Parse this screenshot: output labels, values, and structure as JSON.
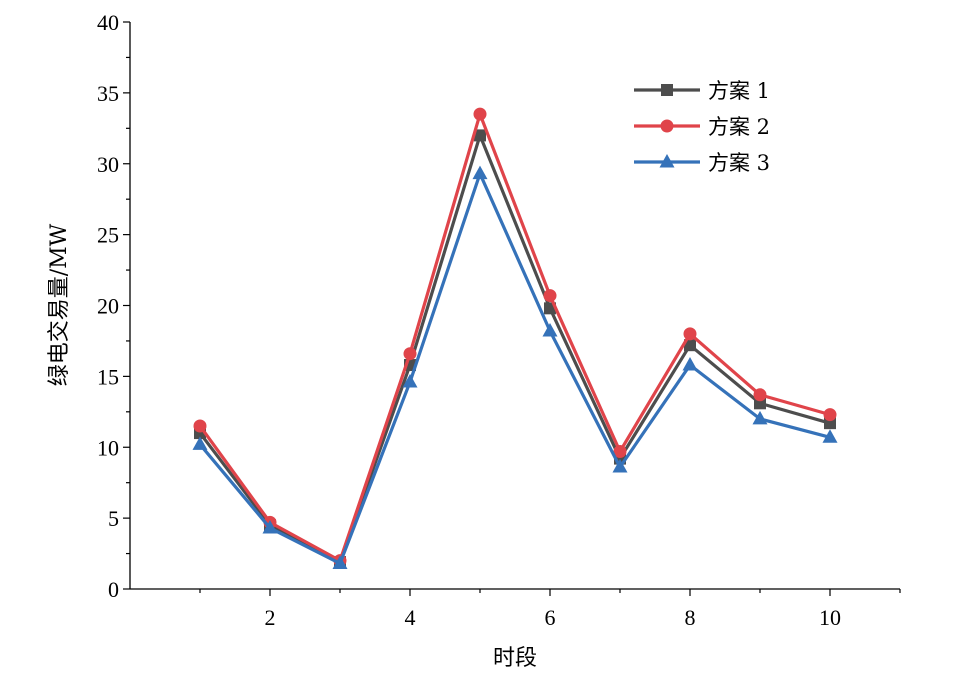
{
  "chart_data": {
    "type": "line",
    "xlabel": "时段",
    "ylabel": "绿电交易量/MW",
    "xlim": [
      0,
      11
    ],
    "ylim": [
      0,
      40
    ],
    "x_ticks": [
      2,
      4,
      6,
      8,
      10
    ],
    "y_ticks": [
      0,
      5,
      10,
      15,
      20,
      25,
      30,
      35,
      40
    ],
    "x_tick_labels": [
      "2",
      "4",
      "6",
      "8",
      "10"
    ],
    "y_tick_labels": [
      "0",
      "5",
      "10",
      "15",
      "20",
      "25",
      "30",
      "35",
      "40"
    ],
    "legend_position": "top-right",
    "grid": false,
    "x": [
      1,
      2,
      3,
      4,
      5,
      6,
      7,
      8,
      9,
      10
    ],
    "series": [
      {
        "name": "方案 1",
        "color": "#4d4d4d",
        "marker": "square",
        "values": [
          11.0,
          4.5,
          1.9,
          15.8,
          32.0,
          19.8,
          9.2,
          17.2,
          13.1,
          11.7
        ]
      },
      {
        "name": "方案 2",
        "color": "#e0444a",
        "marker": "circle",
        "values": [
          11.5,
          4.7,
          2.0,
          16.6,
          33.5,
          20.7,
          9.7,
          18.0,
          13.7,
          12.3
        ]
      },
      {
        "name": "方案 3",
        "color": "#3572b9",
        "marker": "triangle",
        "values": [
          10.2,
          4.3,
          1.8,
          14.6,
          29.3,
          18.2,
          8.6,
          15.8,
          12.0,
          10.7
        ]
      }
    ]
  }
}
